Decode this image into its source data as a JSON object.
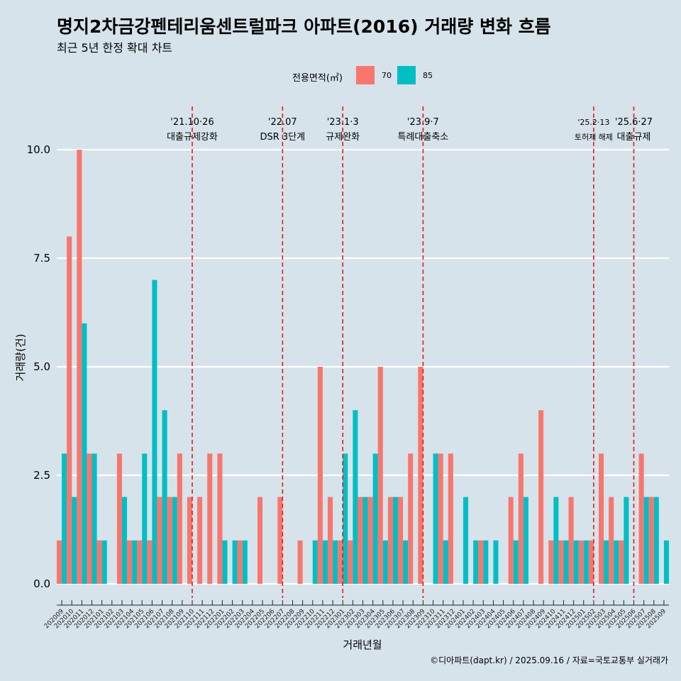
{
  "title": "명지2차금강펜테리움센트럴파크 아파트(2016) 거래량 변화 흐름",
  "subtitle": "최근 5년 한정 확대 차트",
  "caption": "©디아파트(dapt.kr) / 2025.09.16 / 자료=국토교통부 실거래가",
  "legend": {
    "title": "전용면적(㎡)",
    "items": [
      {
        "label": "70",
        "color": "#f8766d"
      },
      {
        "label": "85",
        "color": "#00bfc4"
      }
    ]
  },
  "chart_data": {
    "type": "bar",
    "title": "명지2차금강펜테리움센트럴파크 아파트(2016) 거래량 변화 흐름",
    "xlabel": "거래년월",
    "ylabel": "거래량(건)",
    "ylim": [
      0,
      10
    ],
    "yticks": [
      0,
      2.5,
      5,
      7.5,
      10
    ],
    "ytick_labels": [
      "0.0",
      "2.5",
      "5.0",
      "7.5",
      "10.0"
    ],
    "categories": [
      "202009",
      "202010",
      "202011",
      "202012",
      "202101",
      "202102",
      "202103",
      "202104",
      "202105",
      "202106",
      "202107",
      "202108",
      "202109",
      "202110",
      "202111",
      "202112",
      "202201",
      "202202",
      "202203",
      "202204",
      "202205",
      "202206",
      "202207",
      "202208",
      "202209",
      "202210",
      "202211",
      "202212",
      "202301",
      "202302",
      "202303",
      "202304",
      "202305",
      "202306",
      "202307",
      "202308",
      "202309",
      "202310",
      "202311",
      "202312",
      "202401",
      "202402",
      "202403",
      "202404",
      "202405",
      "202406",
      "202407",
      "202408",
      "202409",
      "202410",
      "202411",
      "202412",
      "202501",
      "202502",
      "202503",
      "202504",
      "202505",
      "202506",
      "202507",
      "202508",
      "202509"
    ],
    "series": [
      {
        "name": "70",
        "color": "#f8766d",
        "values": [
          1,
          8,
          10,
          3,
          1,
          0,
          3,
          1,
          1,
          1,
          2,
          2,
          3,
          2,
          2,
          3,
          3,
          0,
          1,
          0,
          2,
          0,
          2,
          0,
          1,
          0,
          5,
          2,
          1,
          1,
          2,
          2,
          5,
          2,
          2,
          3,
          5,
          0,
          3,
          3,
          0,
          0,
          1,
          0,
          0,
          2,
          3,
          0,
          4,
          1,
          1,
          2,
          1,
          1,
          3,
          2,
          1,
          0,
          3,
          2,
          0
        ]
      },
      {
        "name": "85",
        "color": "#00bfc4",
        "values": [
          3,
          2,
          6,
          3,
          1,
          0,
          2,
          1,
          3,
          7,
          4,
          2,
          0,
          0,
          0,
          0,
          1,
          1,
          1,
          0,
          0,
          0,
          0,
          0,
          0,
          1,
          1,
          1,
          3,
          4,
          2,
          3,
          1,
          2,
          1,
          0,
          0,
          3,
          1,
          0,
          2,
          1,
          1,
          1,
          0,
          1,
          2,
          0,
          0,
          2,
          1,
          1,
          1,
          0,
          1,
          1,
          2,
          0,
          2,
          2,
          1
        ]
      }
    ],
    "annotations": [
      {
        "category": "202110",
        "date": "'21.10·26",
        "label": "대출규제강화"
      },
      {
        "category": "202207",
        "date": "'22.07",
        "label": "DSR 3단계"
      },
      {
        "category": "202301",
        "date": "'23.1·3",
        "label": "규제완화"
      },
      {
        "category": "202309",
        "date": "'23.9·7",
        "label": "특례대출축소"
      },
      {
        "category": "202502",
        "date": "'25.2·13",
        "label": "토허제 해제"
      },
      {
        "category": "202506",
        "date": "'25.6·27",
        "label": "대출규제"
      }
    ]
  }
}
